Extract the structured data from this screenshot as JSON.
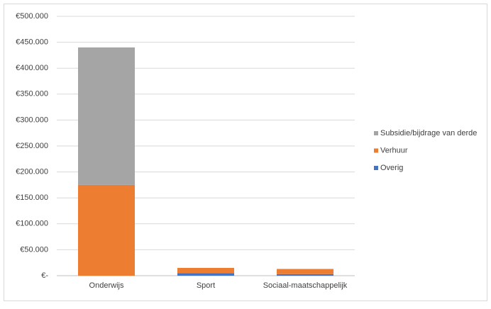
{
  "chart_data": {
    "type": "stacked-bar",
    "categories": [
      "Onderwijs",
      "Sport",
      "Sociaal-maatschappelijk"
    ],
    "series": [
      {
        "name": "Overig",
        "color": "#4472c4",
        "values": [
          0,
          5000,
          3000
        ]
      },
      {
        "name": "Verhuur",
        "color": "#ed7d31",
        "values": [
          175000,
          10000,
          10000
        ]
      },
      {
        "name": "Subsidie/bijdrage van derde",
        "color": "#a5a5a5",
        "values": [
          265000,
          0,
          0
        ]
      }
    ],
    "ylim": [
      0,
      500000
    ],
    "yticks": [
      {
        "value": 0,
        "label": "€-"
      },
      {
        "value": 50000,
        "label": "€50.000"
      },
      {
        "value": 100000,
        "label": "€100.000"
      },
      {
        "value": 150000,
        "label": "€150.000"
      },
      {
        "value": 200000,
        "label": "€200.000"
      },
      {
        "value": 250000,
        "label": "€250.000"
      },
      {
        "value": 300000,
        "label": "€300.000"
      },
      {
        "value": 350000,
        "label": "€350.000"
      },
      {
        "value": 400000,
        "label": "€400.000"
      },
      {
        "value": 450000,
        "label": "€450.000"
      },
      {
        "value": 500000,
        "label": "€500.000"
      }
    ],
    "grid": true,
    "legend": "right"
  }
}
